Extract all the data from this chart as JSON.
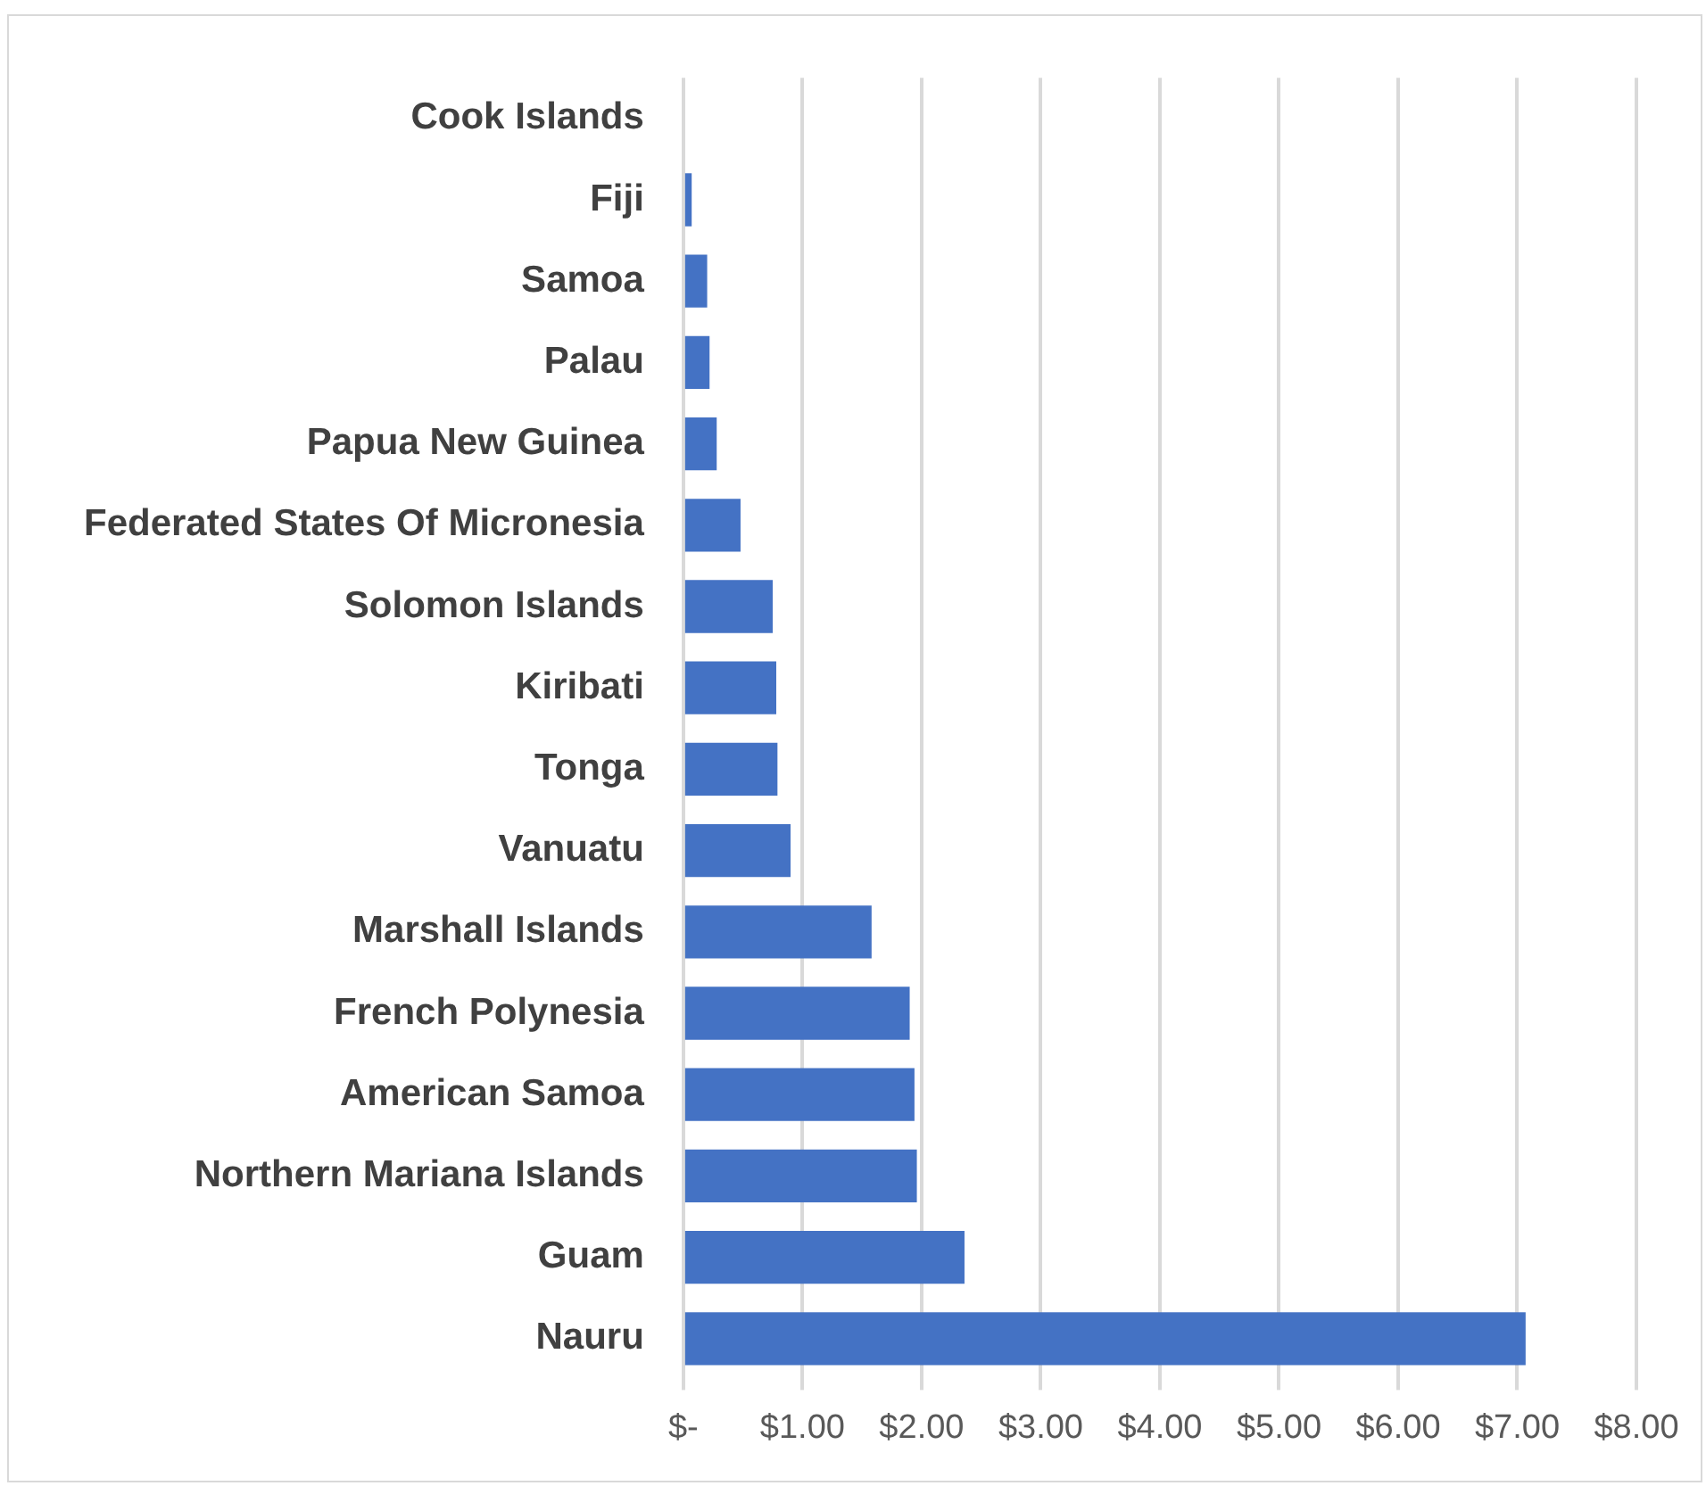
{
  "chart_data": {
    "type": "bar",
    "orientation": "horizontal",
    "categories": [
      "Cook Islands",
      "Fiji",
      "Samoa",
      "Palau",
      "Papua New Guinea",
      "Federated States Of Micronesia",
      "Solomon Islands",
      "Kiribati",
      "Tonga",
      "Vanuatu",
      "Marshall Islands",
      "French Polynesia",
      "American Samoa",
      "Northern Mariana Islands",
      "Guam",
      "Nauru"
    ],
    "values": [
      0,
      0.07,
      0.2,
      0.22,
      0.28,
      0.48,
      0.75,
      0.78,
      0.79,
      0.9,
      1.58,
      1.9,
      1.94,
      1.96,
      2.36,
      7.07
    ],
    "color": "#4472c4",
    "xlim": [
      0,
      8
    ],
    "xticks": [
      {
        "value": 0,
        "label": "$-"
      },
      {
        "value": 1,
        "label": "$1.00"
      },
      {
        "value": 2,
        "label": "$2.00"
      },
      {
        "value": 3,
        "label": "$3.00"
      },
      {
        "value": 4,
        "label": "$4.00"
      },
      {
        "value": 5,
        "label": "$5.00"
      },
      {
        "value": 6,
        "label": "$6.00"
      },
      {
        "value": 7,
        "label": "$7.00"
      },
      {
        "value": 8,
        "label": "$8.00"
      }
    ],
    "grid": "x"
  }
}
